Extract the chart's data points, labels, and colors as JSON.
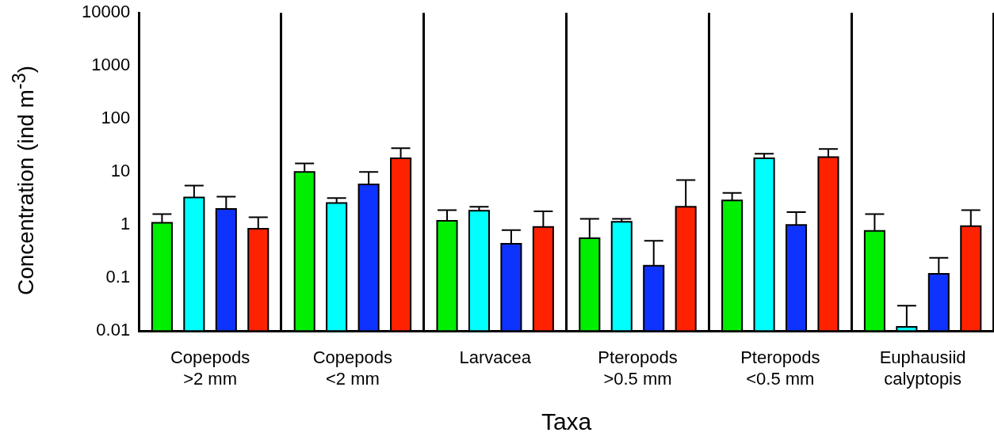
{
  "chart_data": {
    "type": "bar",
    "xlabel": "Taxa",
    "ylabel": "Concentration (ind m$^{-3}$)",
    "categories": [
      "Copepods >2 mm",
      "Copepods <2 mm",
      "Larvacea",
      "Pteropods >0.5 mm",
      "Pteropods <0.5 mm",
      "Euphausiid calyptopis"
    ],
    "series": [
      {
        "color": "#00ee00",
        "values": [
          1.1,
          10,
          1.2,
          0.56,
          2.9,
          0.77
        ],
        "errors": [
          [
            1.1,
            1.6
          ],
          [
            10,
            14.5
          ],
          [
            1.2,
            1.9
          ],
          [
            0.56,
            1.3
          ],
          [
            2.9,
            4.0
          ],
          [
            0.77,
            1.6
          ]
        ]
      },
      {
        "color": "#00ffff",
        "values": [
          3.3,
          2.6,
          1.85,
          1.15,
          18,
          0.012
        ],
        "errors": [
          [
            3.3,
            5.5
          ],
          [
            2.6,
            3.2
          ],
          [
            1.85,
            2.2
          ],
          [
            1.15,
            1.3
          ],
          [
            18,
            22
          ],
          [
            0.012,
            0.03
          ]
        ]
      },
      {
        "color": "#0f33ff",
        "values": [
          2.0,
          5.8,
          0.44,
          0.17,
          1.0,
          0.12
        ],
        "errors": [
          [
            2.0,
            3.4
          ],
          [
            5.8,
            10
          ],
          [
            0.44,
            0.8
          ],
          [
            0.17,
            0.5
          ],
          [
            1.0,
            1.75
          ],
          [
            0.12,
            0.24
          ]
        ]
      },
      {
        "color": "#ff2200",
        "values": [
          0.85,
          18,
          0.92,
          2.2,
          19,
          0.95
        ],
        "errors": [
          [
            0.85,
            1.4
          ],
          [
            18,
            28
          ],
          [
            0.92,
            1.8
          ],
          [
            2.2,
            7
          ],
          [
            19,
            27
          ],
          [
            0.95,
            1.9
          ]
        ]
      }
    ],
    "log": true,
    "ylim": [
      0.01,
      10000
    ],
    "yticks": [
      0.01,
      0.1,
      1,
      10,
      100,
      1000,
      10000
    ],
    "grid": "x",
    "legend": false
  }
}
